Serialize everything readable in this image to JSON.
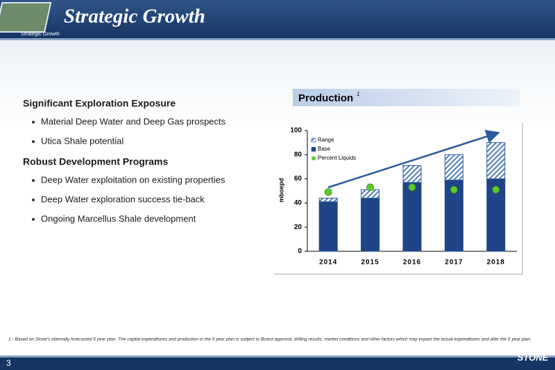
{
  "header": {
    "title": "Strategic Growth",
    "subtitle": "Strategic Growth"
  },
  "sections": [
    {
      "heading": "Significant Exploration Exposure",
      "bullets": [
        "Material Deep Water and Deep Gas prospects",
        "Utica Shale potential"
      ]
    },
    {
      "heading": "Robust Development Programs",
      "bullets": [
        "Deep Water exploitation on existing properties",
        "Deep Water exploration success tie-back",
        "Ongoing Marcellus Shale development"
      ]
    }
  ],
  "chart_data": {
    "type": "bar",
    "stacked": true,
    "title": "Production",
    "title_note": "1",
    "y_label": "mboepd",
    "categories": [
      "2014",
      "2015",
      "2016",
      "2017",
      "2018"
    ],
    "series": [
      {
        "name": "Range",
        "kind": "bar",
        "pattern": "hatch",
        "color": "#2c5c9e",
        "values": [
          3,
          7,
          14,
          21,
          30
        ]
      },
      {
        "name": "Base",
        "kind": "bar",
        "color": "#1f4488",
        "values": [
          41,
          44,
          57,
          59,
          60
        ]
      },
      {
        "name": "Percent Liquids",
        "kind": "scatter",
        "color": "#5ccb2a",
        "values": [
          49,
          53,
          53,
          51,
          51
        ]
      }
    ],
    "ylim": [
      0,
      100
    ],
    "yticks": [
      0,
      20,
      40,
      60,
      80,
      100
    ],
    "legend": "upper left"
  },
  "footnote": "1 - Based on Stone's internally forecasted 5 year plan. The capital expenditures and production in the 5 year plan is subject to Board approval, drilling results, market conditions and other factors which may impact the actual expenditures and alter the 5 year plan.",
  "page_number": "3",
  "logo": "STONE"
}
